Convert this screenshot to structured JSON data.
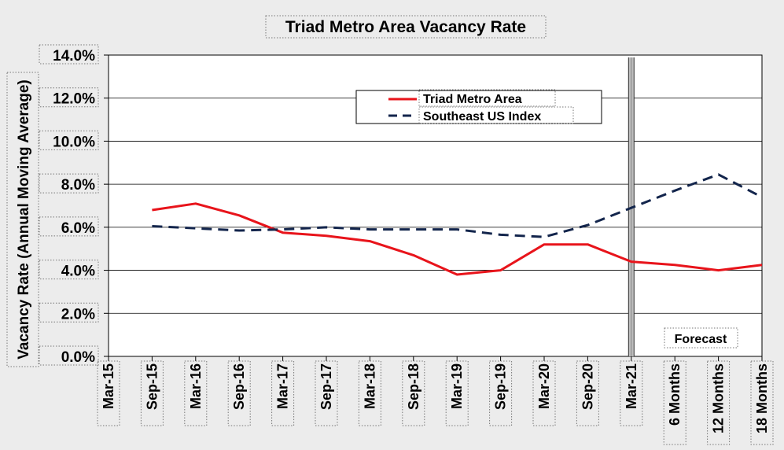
{
  "chart_data": {
    "type": "line",
    "title": "Triad Metro Area Vacancy Rate",
    "ylabel": "Vacancy Rate (Annual Moving Average)",
    "xlabel": "",
    "categories": [
      "Mar-15",
      "Sep-15",
      "Mar-16",
      "Sep-16",
      "Mar-17",
      "Sep-17",
      "Mar-18",
      "Sep-18",
      "Mar-19",
      "Sep-19",
      "Mar-20",
      "Sep-20",
      "Mar-21",
      "6 Months",
      "12 Months",
      "18 Months"
    ],
    "y_tick_labels": [
      "0.0%",
      "2.0%",
      "4.0%",
      "6.0%",
      "8.0%",
      "10.0%",
      "12.0%",
      "14.0%"
    ],
    "ylim": [
      0,
      14
    ],
    "grid": true,
    "legend_position": "top-center",
    "series": [
      {
        "name": "Triad  Metro Area",
        "color": "#e8141b",
        "style": "solid",
        "values": [
          null,
          6.8,
          7.1,
          6.55,
          5.75,
          5.6,
          5.35,
          4.7,
          3.8,
          4.0,
          5.2,
          5.2,
          4.4,
          4.25,
          4.0,
          4.25
        ]
      },
      {
        "name": "Southeast US Index",
        "color": "#13254c",
        "style": "dashed",
        "values": [
          null,
          6.05,
          5.95,
          5.85,
          5.9,
          6.0,
          5.9,
          5.9,
          5.9,
          5.65,
          5.55,
          6.1,
          6.9,
          7.7,
          8.45,
          7.4
        ]
      }
    ],
    "forecast_divider_at": "Mar-21",
    "annotations": [
      {
        "text": "Forecast"
      }
    ]
  }
}
